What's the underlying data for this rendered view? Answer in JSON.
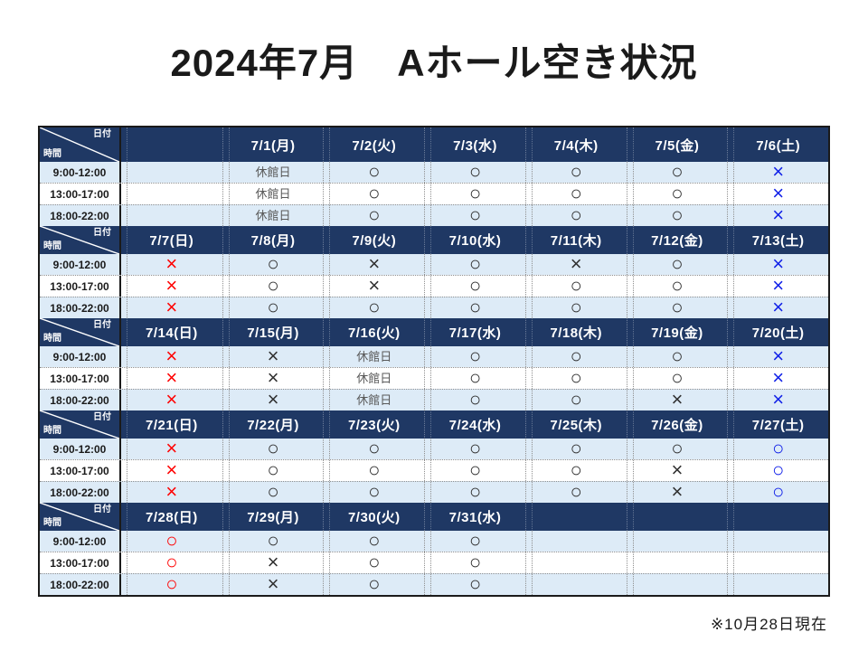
{
  "title": "2024年7月　Aホール空き状況",
  "footnote": "※10月28日現在",
  "colors": {
    "navy": "#1f3864",
    "row_alt": "#ddebf7",
    "sunday_mark": "#ff0000",
    "saturday_mark": "#0f1fe8",
    "weekday_mark": "#303030",
    "closed_text": "#595959",
    "dot_line": "#8f8f8f",
    "table_border": "#1a1a1a"
  },
  "table": {
    "corner_top_label": "日付",
    "corner_bottom_label": "時間",
    "time_slots": [
      "9:00-12:00",
      "13:00-17:00",
      "18:00-22:00"
    ],
    "weeks": [
      {
        "dates": [
          "",
          "7/1(月)",
          "7/2(火)",
          "7/3(水)",
          "7/4(木)",
          "7/5(金)",
          "7/6(土)"
        ],
        "rows": [
          [
            "",
            "休館日",
            "○",
            "○",
            "○",
            "○",
            "×"
          ],
          [
            "",
            "休館日",
            "○",
            "○",
            "○",
            "○",
            "×"
          ],
          [
            "",
            "休館日",
            "○",
            "○",
            "○",
            "○",
            "×"
          ]
        ]
      },
      {
        "dates": [
          "7/7(日)",
          "7/8(月)",
          "7/9(火)",
          "7/10(水)",
          "7/11(木)",
          "7/12(金)",
          "7/13(土)"
        ],
        "rows": [
          [
            "×",
            "○",
            "×",
            "○",
            "×",
            "○",
            "×"
          ],
          [
            "×",
            "○",
            "×",
            "○",
            "○",
            "○",
            "×"
          ],
          [
            "×",
            "○",
            "○",
            "○",
            "○",
            "○",
            "×"
          ]
        ]
      },
      {
        "dates": [
          "7/14(日)",
          "7/15(月)",
          "7/16(火)",
          "7/17(水)",
          "7/18(木)",
          "7/19(金)",
          "7/20(土)"
        ],
        "rows": [
          [
            "×",
            "×",
            "休館日",
            "○",
            "○",
            "○",
            "×"
          ],
          [
            "×",
            "×",
            "休館日",
            "○",
            "○",
            "○",
            "×"
          ],
          [
            "×",
            "×",
            "休館日",
            "○",
            "○",
            "×",
            "×"
          ]
        ]
      },
      {
        "dates": [
          "7/21(日)",
          "7/22(月)",
          "7/23(火)",
          "7/24(水)",
          "7/25(木)",
          "7/26(金)",
          "7/27(土)"
        ],
        "rows": [
          [
            "×",
            "○",
            "○",
            "○",
            "○",
            "○",
            "○"
          ],
          [
            "×",
            "○",
            "○",
            "○",
            "○",
            "×",
            "○"
          ],
          [
            "×",
            "○",
            "○",
            "○",
            "○",
            "×",
            "○"
          ]
        ]
      },
      {
        "dates": [
          "7/28(日)",
          "7/29(月)",
          "7/30(火)",
          "7/31(水)",
          "",
          "",
          ""
        ],
        "rows": [
          [
            "○",
            "○",
            "○",
            "○",
            "",
            "",
            ""
          ],
          [
            "○",
            "×",
            "○",
            "○",
            "",
            "",
            ""
          ],
          [
            "○",
            "×",
            "○",
            "○",
            "",
            "",
            ""
          ]
        ]
      }
    ]
  }
}
